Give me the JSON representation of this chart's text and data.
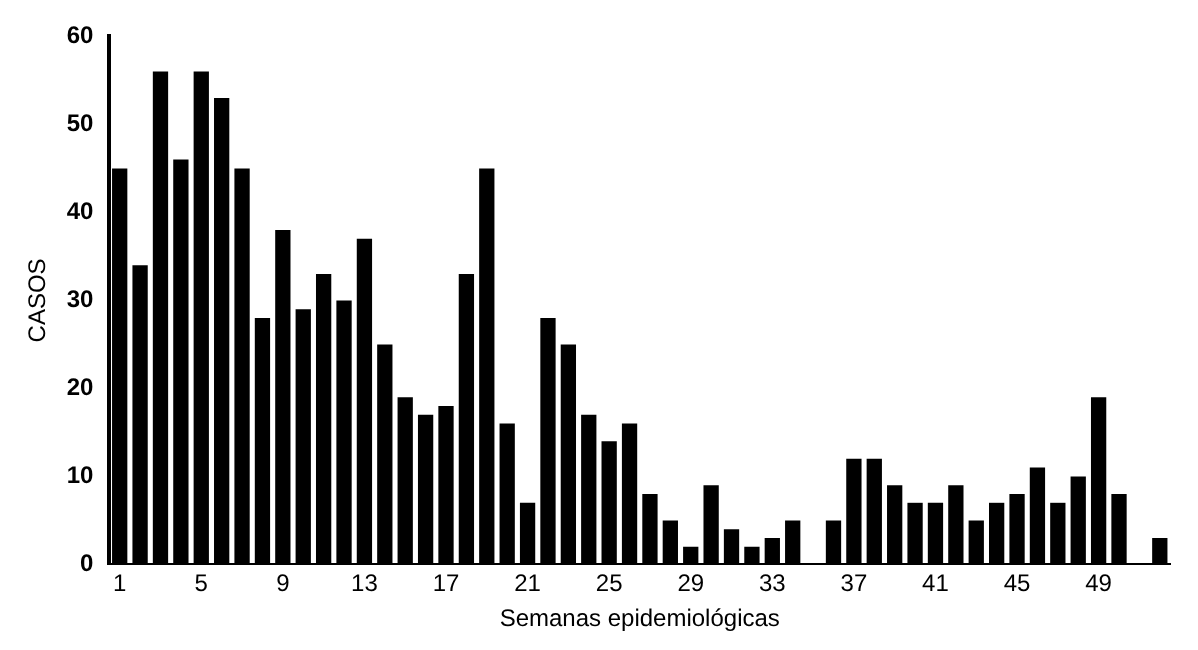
{
  "chart_data": {
    "type": "bar",
    "xlabel": "Semanas epidemiológicas",
    "ylabel": "CASOS",
    "categories": [
      "1",
      null,
      null,
      null,
      "5",
      null,
      null,
      null,
      "9",
      null,
      null,
      null,
      "13",
      null,
      null,
      null,
      "17",
      null,
      null,
      null,
      "21",
      null,
      null,
      null,
      "25",
      null,
      null,
      null,
      "29",
      null,
      null,
      null,
      "33",
      null,
      null,
      null,
      "37",
      null,
      null,
      null,
      "41",
      null,
      null,
      null,
      "45",
      null,
      null,
      null,
      "49",
      null,
      null,
      null
    ],
    "values": [
      45,
      34,
      56,
      46,
      56,
      53,
      45,
      28,
      38,
      29,
      33,
      30,
      37,
      25,
      19,
      17,
      18,
      33,
      45,
      16,
      7,
      28,
      25,
      17,
      14,
      16,
      8,
      5,
      2,
      9,
      4,
      2,
      3,
      5,
      0,
      5,
      12,
      12,
      9,
      7,
      7,
      9,
      5,
      7,
      8,
      11,
      7,
      10,
      19,
      8,
      0,
      3
    ],
    "color": "#000000",
    "ylim": [
      0,
      60
    ],
    "yticks": [
      0,
      10,
      20,
      30,
      40,
      50,
      60
    ],
    "grid": false,
    "legend": false
  }
}
